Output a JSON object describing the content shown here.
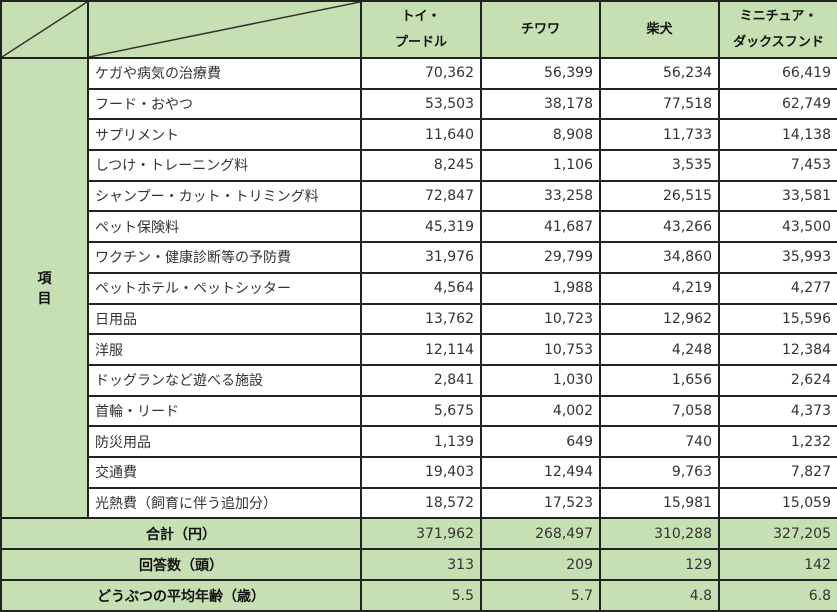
{
  "header": {
    "columns": [
      "トイ・\nプードル",
      "チワワ",
      "柴犬",
      "ミニチュア・\nダックスフンド"
    ],
    "columns_lines": [
      [
        "トイ・",
        "プードル"
      ],
      [
        "チワワ"
      ],
      [
        "柴犬"
      ],
      [
        "ミニチュア・",
        "ダックスフンド"
      ]
    ]
  },
  "row_group_label": [
    "項",
    "目"
  ],
  "rows": [
    {
      "label": "ケガや病気の治療費",
      "values": [
        "70,362",
        "56,399",
        "56,234",
        "66,419"
      ]
    },
    {
      "label": "フード・おやつ",
      "values": [
        "53,503",
        "38,178",
        "77,518",
        "62,749"
      ]
    },
    {
      "label": "サプリメント",
      "values": [
        "11,640",
        "8,908",
        "11,733",
        "14,138"
      ]
    },
    {
      "label": "しつけ・トレーニング料",
      "values": [
        "8,245",
        "1,106",
        "3,535",
        "7,453"
      ]
    },
    {
      "label": "シャンプー・カット・トリミング料",
      "values": [
        "72,847",
        "33,258",
        "26,515",
        "33,581"
      ]
    },
    {
      "label": "ペット保険料",
      "values": [
        "45,319",
        "41,687",
        "43,266",
        "43,500"
      ]
    },
    {
      "label": "ワクチン・健康診断等の予防費",
      "values": [
        "31,976",
        "29,799",
        "34,860",
        "35,993"
      ]
    },
    {
      "label": "ペットホテル・ペットシッター",
      "values": [
        "4,564",
        "1,988",
        "4,219",
        "4,277"
      ]
    },
    {
      "label": "日用品",
      "values": [
        "13,762",
        "10,723",
        "12,962",
        "15,596"
      ]
    },
    {
      "label": "洋服",
      "values": [
        "12,114",
        "10,753",
        "4,248",
        "12,384"
      ]
    },
    {
      "label": "ドッグランなど遊べる施設",
      "values": [
        "2,841",
        "1,030",
        "1,656",
        "2,624"
      ]
    },
    {
      "label": "首輪・リード",
      "values": [
        "5,675",
        "4,002",
        "7,058",
        "4,373"
      ]
    },
    {
      "label": "防災用品",
      "values": [
        "1,139",
        "649",
        "740",
        "1,232"
      ]
    },
    {
      "label": "交通費",
      "values": [
        "19,403",
        "12,494",
        "9,763",
        "7,827"
      ]
    },
    {
      "label": "光熱費（飼育に伴う追加分）",
      "values": [
        "18,572",
        "17,523",
        "15,981",
        "15,059"
      ]
    }
  ],
  "summary": [
    {
      "label": "合計（円）",
      "values": [
        "371,962",
        "268,497",
        "310,288",
        "327,205"
      ]
    },
    {
      "label": "回答数（頭）",
      "values": [
        "313",
        "209",
        "129",
        "142"
      ]
    },
    {
      "label": "どうぶつの平均年齢（歳）",
      "values": [
        "5.5",
        "5.7",
        "4.8",
        "6.8"
      ]
    }
  ],
  "colors": {
    "header_green": "#c6e0b4",
    "border": "#222222"
  }
}
